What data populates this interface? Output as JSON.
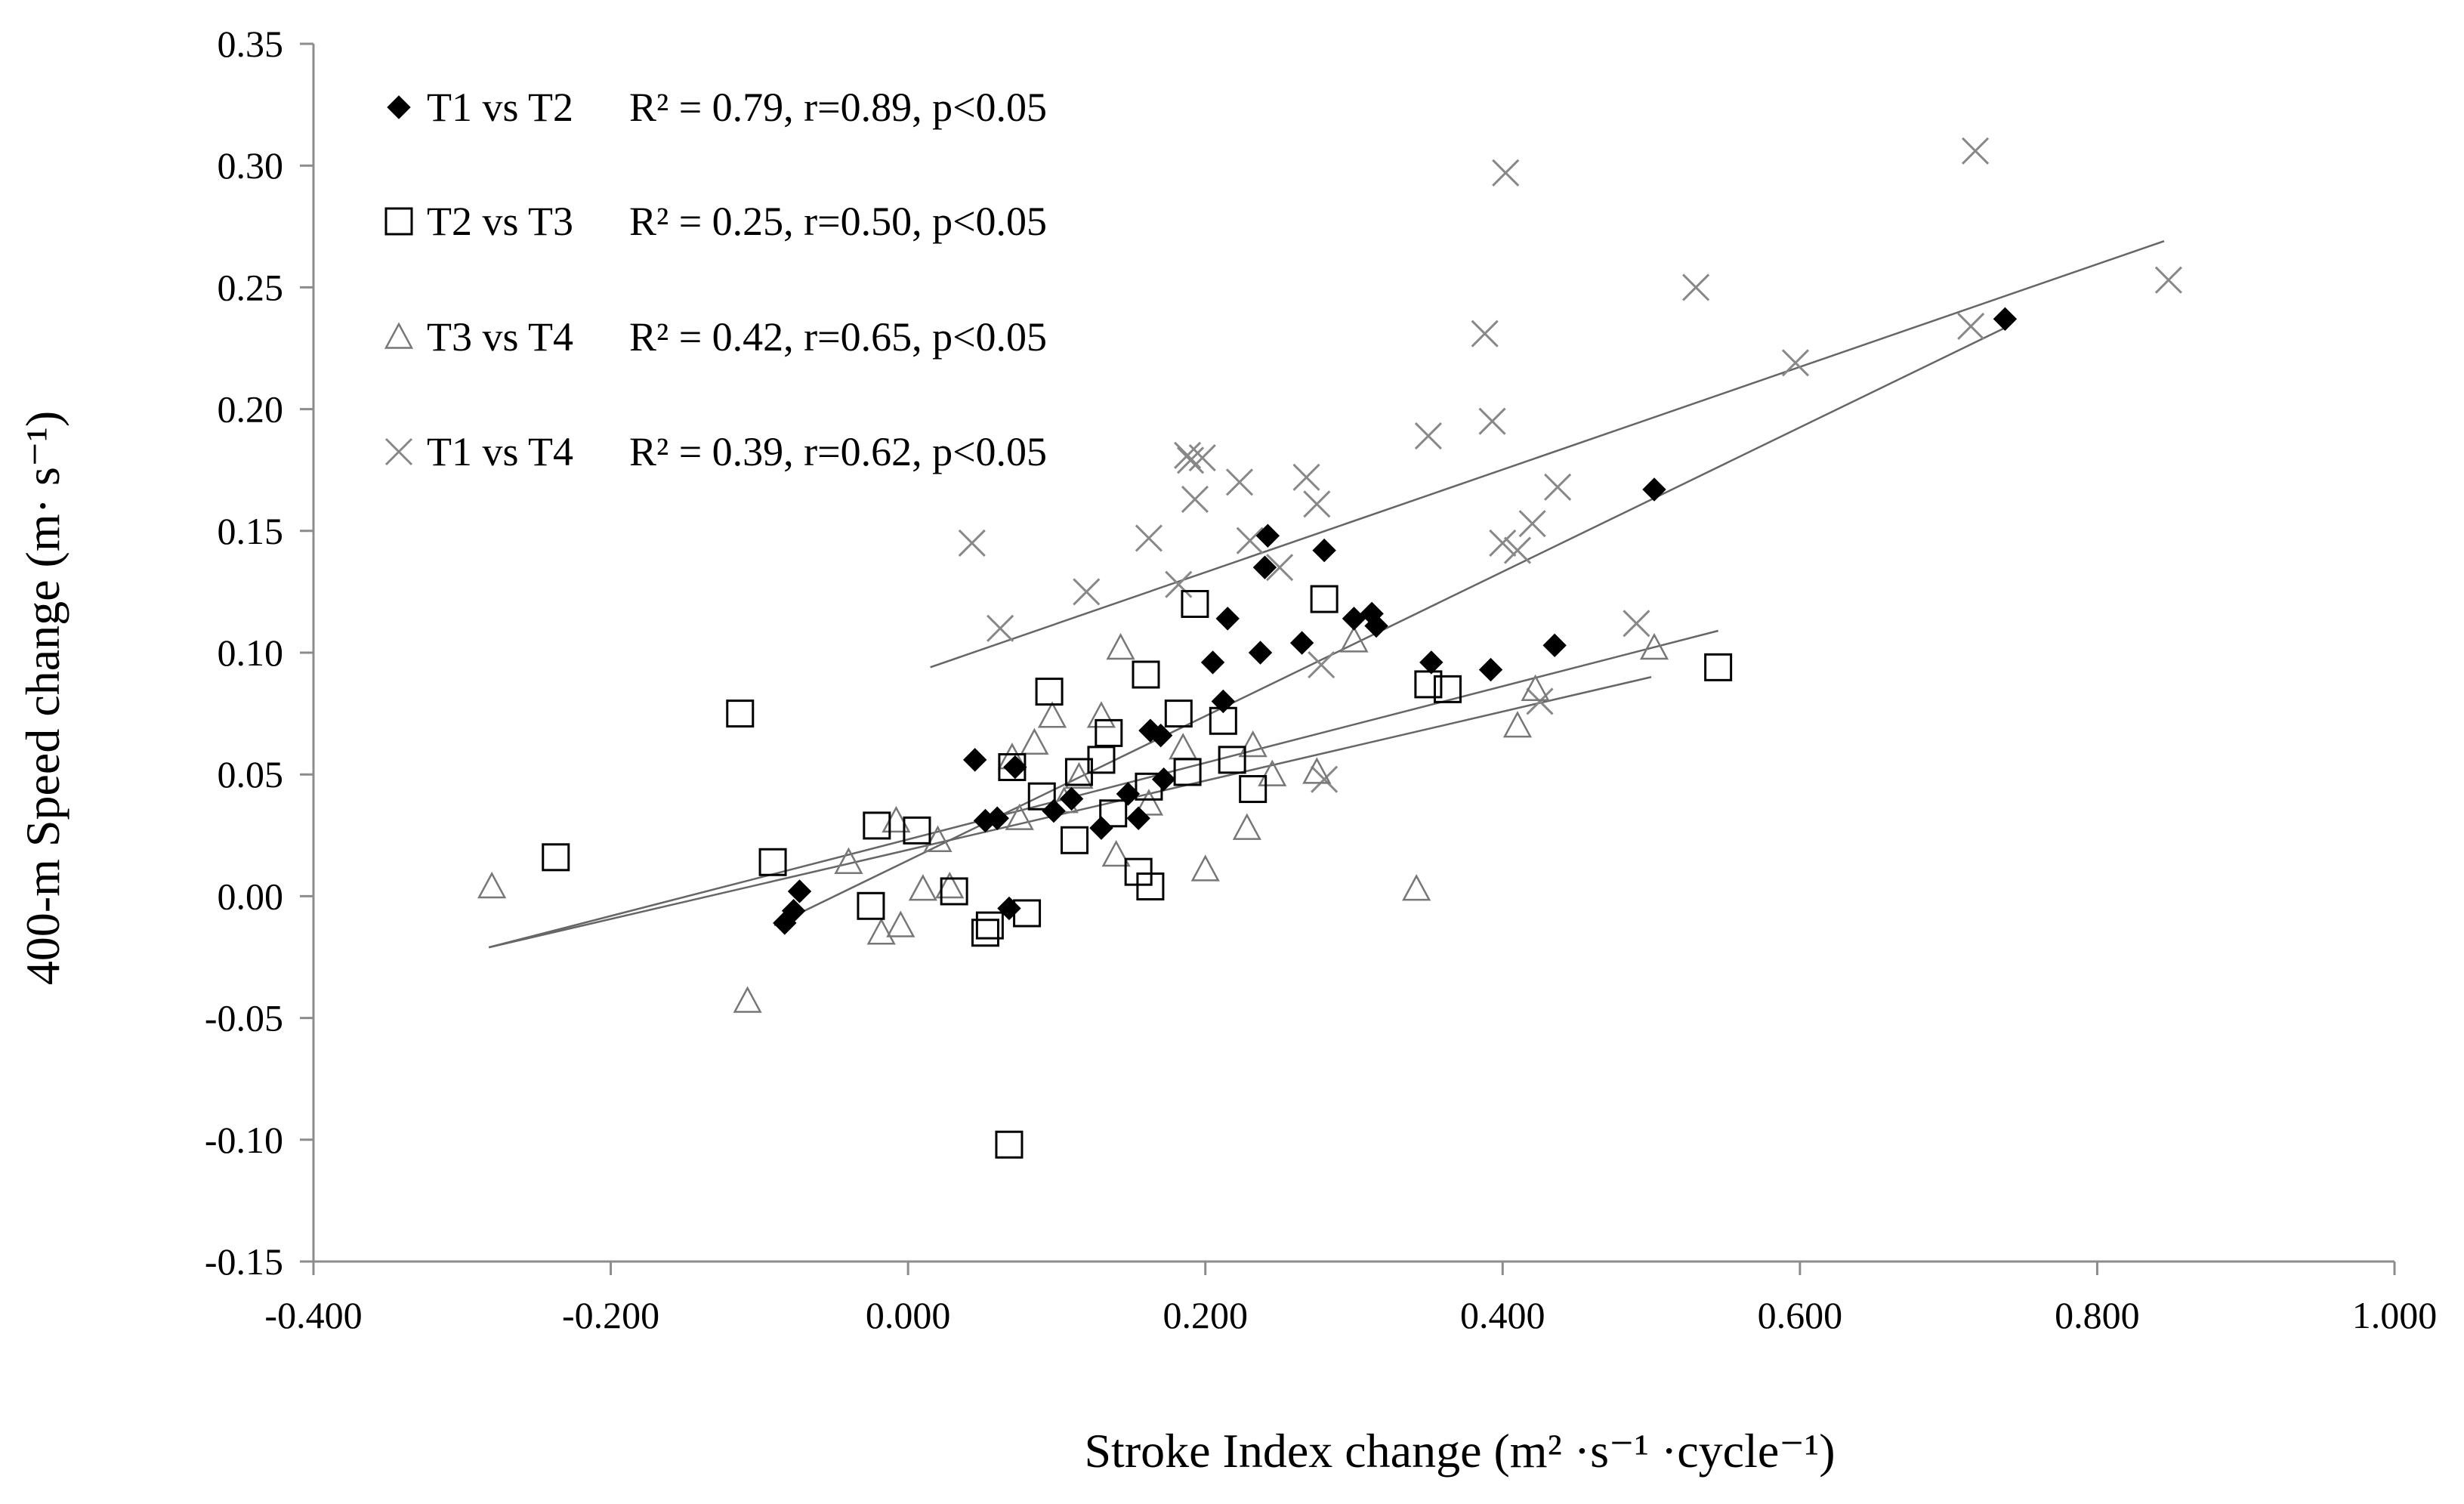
{
  "chart_data": {
    "type": "scatter",
    "title": "",
    "xlabel": "Stroke Index change (m² ·s⁻¹ ·cycle⁻¹)",
    "ylabel": "400-m Speed change (m· s⁻¹)",
    "xlim": [
      -0.4,
      1.0
    ],
    "ylim": [
      -0.15,
      0.35
    ],
    "x_ticks": [
      -0.4,
      -0.2,
      0.0,
      0.2,
      0.4,
      0.6,
      0.8,
      1.0
    ],
    "y_ticks": [
      -0.15,
      -0.1,
      -0.05,
      0.0,
      0.05,
      0.1,
      0.15,
      0.2,
      0.25,
      0.3,
      0.35
    ],
    "x_tick_labels": [
      "-0.400",
      "-0.200",
      "0.000",
      "0.200",
      "0.400",
      "0.600",
      "0.800",
      "1.000"
    ],
    "y_tick_labels": [
      "-0.15",
      "-0.10",
      "-0.05",
      "0.00",
      "0.05",
      "0.10",
      "0.15",
      "0.20",
      "0.25",
      "0.30",
      "0.35"
    ],
    "grid": false,
    "legend_position": "top-left",
    "series": [
      {
        "name": "T1 vs T2",
        "stats": "R² = 0.79, r=0.89, p<0.05",
        "marker": "diamond-filled",
        "trendline": [
          [
            -0.09,
            -0.012
          ],
          [
            0.74,
            0.234
          ]
        ],
        "points": [
          [
            -0.083,
            -0.011
          ],
          [
            -0.077,
            -0.006
          ],
          [
            -0.073,
            0.002
          ],
          [
            0.045,
            0.056
          ],
          [
            0.052,
            0.031
          ],
          [
            0.06,
            0.032
          ],
          [
            0.068,
            -0.005
          ],
          [
            0.072,
            0.053
          ],
          [
            0.098,
            0.035
          ],
          [
            0.11,
            0.04
          ],
          [
            0.13,
            0.028
          ],
          [
            0.148,
            0.042
          ],
          [
            0.155,
            0.032
          ],
          [
            0.163,
            0.068
          ],
          [
            0.17,
            0.066
          ],
          [
            0.172,
            0.048
          ],
          [
            0.205,
            0.096
          ],
          [
            0.212,
            0.08
          ],
          [
            0.215,
            0.114
          ],
          [
            0.237,
            0.1
          ],
          [
            0.24,
            0.135
          ],
          [
            0.242,
            0.148
          ],
          [
            0.265,
            0.104
          ],
          [
            0.28,
            0.142
          ],
          [
            0.3,
            0.114
          ],
          [
            0.312,
            0.116
          ],
          [
            0.315,
            0.111
          ],
          [
            0.352,
            0.096
          ],
          [
            0.392,
            0.093
          ],
          [
            0.435,
            0.103
          ],
          [
            0.502,
            0.167
          ],
          [
            0.738,
            0.237
          ]
        ]
      },
      {
        "name": "T2 vs T3",
        "stats": "R² = 0.25, r=0.50, p<0.05",
        "marker": "square-open",
        "trendline": [
          [
            -0.282,
            -0.021
          ],
          [
            0.545,
            0.109
          ]
        ],
        "points": [
          [
            -0.237,
            0.016
          ],
          [
            -0.113,
            0.075
          ],
          [
            -0.091,
            0.014
          ],
          [
            -0.025,
            -0.004
          ],
          [
            -0.021,
            0.029
          ],
          [
            0.006,
            0.027
          ],
          [
            0.031,
            0.002
          ],
          [
            0.052,
            -0.015
          ],
          [
            0.055,
            -0.012
          ],
          [
            0.068,
            -0.102
          ],
          [
            0.07,
            0.053
          ],
          [
            0.08,
            -0.007
          ],
          [
            0.09,
            0.041
          ],
          [
            0.095,
            0.084
          ],
          [
            0.112,
            0.023
          ],
          [
            0.115,
            0.051
          ],
          [
            0.13,
            0.056
          ],
          [
            0.135,
            0.067
          ],
          [
            0.138,
            0.034
          ],
          [
            0.155,
            0.01
          ],
          [
            0.16,
            0.091
          ],
          [
            0.162,
            0.045
          ],
          [
            0.163,
            0.004
          ],
          [
            0.182,
            0.075
          ],
          [
            0.188,
            0.051
          ],
          [
            0.193,
            0.12
          ],
          [
            0.212,
            0.072
          ],
          [
            0.218,
            0.056
          ],
          [
            0.232,
            0.044
          ],
          [
            0.28,
            0.122
          ],
          [
            0.35,
            0.087
          ],
          [
            0.363,
            0.085
          ],
          [
            0.545,
            0.094
          ]
        ]
      },
      {
        "name": "T3 vs T4",
        "stats": "R² = 0.42, r=0.65, p<0.05",
        "marker": "triangle-open",
        "trendline": [
          [
            -0.282,
            -0.021
          ],
          [
            0.5,
            0.09
          ]
        ],
        "points": [
          [
            -0.28,
            0.004
          ],
          [
            -0.108,
            -0.043
          ],
          [
            -0.04,
            0.014
          ],
          [
            -0.018,
            -0.015
          ],
          [
            -0.008,
            0.031
          ],
          [
            -0.005,
            -0.012
          ],
          [
            0.01,
            0.003
          ],
          [
            0.02,
            0.023
          ],
          [
            0.028,
            0.004
          ],
          [
            0.07,
            0.057
          ],
          [
            0.075,
            0.032
          ],
          [
            0.085,
            0.063
          ],
          [
            0.097,
            0.074
          ],
          [
            0.105,
            0.039
          ],
          [
            0.115,
            0.049
          ],
          [
            0.13,
            0.074
          ],
          [
            0.14,
            0.017
          ],
          [
            0.143,
            0.102
          ],
          [
            0.162,
            0.038
          ],
          [
            0.185,
            0.061
          ],
          [
            0.2,
            0.011
          ],
          [
            0.228,
            0.028
          ],
          [
            0.232,
            0.062
          ],
          [
            0.245,
            0.05
          ],
          [
            0.275,
            0.051
          ],
          [
            0.3,
            0.105
          ],
          [
            0.342,
            0.003
          ],
          [
            0.41,
            0.07
          ],
          [
            0.422,
            0.085
          ],
          [
            0.502,
            0.102
          ]
        ]
      },
      {
        "name": "T1 vs T4",
        "stats": "R² = 0.39, r=0.62, p<0.05",
        "marker": "x",
        "trendline": [
          [
            0.015,
            0.094
          ],
          [
            0.845,
            0.269
          ]
        ],
        "points": [
          [
            0.043,
            0.145
          ],
          [
            0.062,
            0.11
          ],
          [
            0.12,
            0.125
          ],
          [
            0.162,
            0.147
          ],
          [
            0.182,
            0.128
          ],
          [
            0.188,
            0.181
          ],
          [
            0.19,
            0.179
          ],
          [
            0.193,
            0.163
          ],
          [
            0.198,
            0.18
          ],
          [
            0.223,
            0.17
          ],
          [
            0.23,
            0.146
          ],
          [
            0.25,
            0.135
          ],
          [
            0.268,
            0.172
          ],
          [
            0.275,
            0.161
          ],
          [
            0.278,
            0.095
          ],
          [
            0.28,
            0.048
          ],
          [
            0.35,
            0.189
          ],
          [
            0.388,
            0.231
          ],
          [
            0.393,
            0.195
          ],
          [
            0.4,
            0.145
          ],
          [
            0.402,
            0.297
          ],
          [
            0.41,
            0.142
          ],
          [
            0.42,
            0.153
          ],
          [
            0.425,
            0.08
          ],
          [
            0.437,
            0.168
          ],
          [
            0.49,
            0.112
          ],
          [
            0.53,
            0.25
          ],
          [
            0.597,
            0.219
          ],
          [
            0.715,
            0.234
          ],
          [
            0.718,
            0.306
          ],
          [
            0.848,
            0.253
          ]
        ]
      }
    ]
  }
}
